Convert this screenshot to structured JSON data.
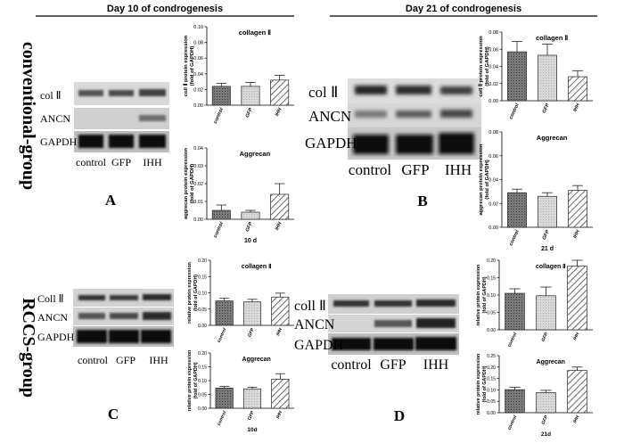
{
  "headers": {
    "day10": "Day 10 of condrogenesis",
    "day21": "Day 21 of condrogenesis"
  },
  "row_labels": {
    "conventional": "conventional-group",
    "rccs": "RCCS-group"
  },
  "panels": {
    "A": {
      "letter": "A",
      "blot_labels": [
        "col Ⅱ",
        "ANCN",
        "GAPDH"
      ],
      "lanes": [
        "control",
        "GFP",
        "IHH"
      ]
    },
    "B": {
      "letter": "B",
      "blot_labels": [
        "col Ⅱ",
        "ANCN",
        "GAPDH"
      ],
      "lanes": [
        "control",
        "GFP",
        "IHH"
      ]
    },
    "C": {
      "letter": "C",
      "blot_labels": [
        "Coll Ⅱ",
        "ANCN",
        "GAPDH"
      ],
      "lanes": [
        "control",
        "GFP",
        "IHH"
      ]
    },
    "D": {
      "letter": "D",
      "blot_labels": [
        "coll Ⅱ",
        "ANCN",
        "GAPDH"
      ],
      "lanes": [
        "control",
        "GFP",
        "IHH"
      ]
    }
  },
  "colors": {
    "control": "#555555",
    "GFP": "#c8c8c8",
    "IHH": "#ffffff",
    "text": "#000000"
  },
  "chart_data": [
    {
      "type": "bar",
      "panel": "A",
      "title": "collagen Ⅱ",
      "ylabel": "coll Ⅱ protein expression (fold of GAPDH)",
      "categories": [
        "control",
        "GFP",
        "IHH"
      ],
      "values": [
        0.024,
        0.024,
        0.032
      ],
      "errors": [
        0.004,
        0.005,
        0.006
      ],
      "ylim": [
        0,
        0.1
      ],
      "yticks": [
        "0.00",
        "0.02",
        "0.04",
        "0.06",
        "0.08",
        "0.10"
      ],
      "xlabel": ""
    },
    {
      "type": "bar",
      "panel": "A",
      "title": "Aggrecan",
      "ylabel": "aggrecan protein expression (fold of GAPDH)",
      "categories": [
        "control",
        "GFP",
        "IHH"
      ],
      "values": [
        0.005,
        0.004,
        0.014
      ],
      "errors": [
        0.003,
        0.001,
        0.006
      ],
      "ylim": [
        0,
        0.04
      ],
      "yticks": [
        "0.00",
        "0.01",
        "0.02",
        "0.03",
        "0.04"
      ],
      "xlabel": "10 d"
    },
    {
      "type": "bar",
      "panel": "B",
      "title": "collagen Ⅱ",
      "ylabel": "coll Ⅱ protein expression (fold of GAPDH)",
      "categories": [
        "control",
        "GFP",
        "IHH"
      ],
      "values": [
        0.057,
        0.053,
        0.028
      ],
      "errors": [
        0.012,
        0.013,
        0.007
      ],
      "ylim": [
        0,
        0.08
      ],
      "yticks": [
        "0.00",
        "0.02",
        "0.04",
        "0.06",
        "0.08"
      ],
      "xlabel": ""
    },
    {
      "type": "bar",
      "panel": "B",
      "title": "Aggrecan",
      "ylabel": "aggrecan protein expression (fold of GAPDH)",
      "categories": [
        "control",
        "GFP",
        "IHH"
      ],
      "values": [
        0.029,
        0.026,
        0.031
      ],
      "errors": [
        0.003,
        0.003,
        0.004
      ],
      "ylim": [
        0,
        0.08
      ],
      "yticks": [
        "0.00",
        "0.02",
        "0.04",
        "0.06",
        "0.08"
      ],
      "xlabel": "21 d"
    },
    {
      "type": "bar",
      "panel": "C",
      "title": "collagen Ⅱ",
      "ylabel": "relative protein expression (fold of GAPDH)",
      "categories": [
        "control",
        "GFP",
        "IHH"
      ],
      "values": [
        0.075,
        0.072,
        0.087
      ],
      "errors": [
        0.008,
        0.008,
        0.012
      ],
      "ylim": [
        0,
        0.2
      ],
      "yticks": [
        "0.00",
        "0.05",
        "0.10",
        "0.15",
        "0.20"
      ],
      "xlabel": ""
    },
    {
      "type": "bar",
      "panel": "C",
      "title": "Aggrecan",
      "ylabel": "relative protein expression (fold of GAPDH)",
      "categories": [
        "control",
        "GFP",
        "IHH"
      ],
      "values": [
        0.073,
        0.07,
        0.105
      ],
      "errors": [
        0.006,
        0.006,
        0.02
      ],
      "ylim": [
        0,
        0.2
      ],
      "yticks": [
        "0.00",
        "0.05",
        "0.10",
        "0.15",
        "0.20"
      ],
      "xlabel": "10d"
    },
    {
      "type": "bar",
      "panel": "D",
      "title": "collagen Ⅱ",
      "ylabel": "relative protein expression (fold of GAPDH)",
      "categories": [
        "control",
        "GFP",
        "IHH"
      ],
      "values": [
        0.105,
        0.098,
        0.183
      ],
      "errors": [
        0.013,
        0.025,
        0.017
      ],
      "ylim": [
        0,
        0.2
      ],
      "yticks": [
        "0.00",
        "0.05",
        "0.10",
        "0.15",
        "0.20"
      ],
      "xlabel": ""
    },
    {
      "type": "bar",
      "panel": "D",
      "title": "Aggrecan",
      "ylabel": "relative protein expression (fold of GAPDH)",
      "categories": [
        "control",
        "GFP",
        "IHH"
      ],
      "values": [
        0.101,
        0.088,
        0.185
      ],
      "errors": [
        0.01,
        0.01,
        0.015
      ],
      "ylim": [
        0,
        0.25
      ],
      "yticks": [
        "0.00",
        "0.05",
        "0.10",
        "0.15",
        "0.20",
        "0.25"
      ],
      "xlabel": "21d"
    }
  ]
}
